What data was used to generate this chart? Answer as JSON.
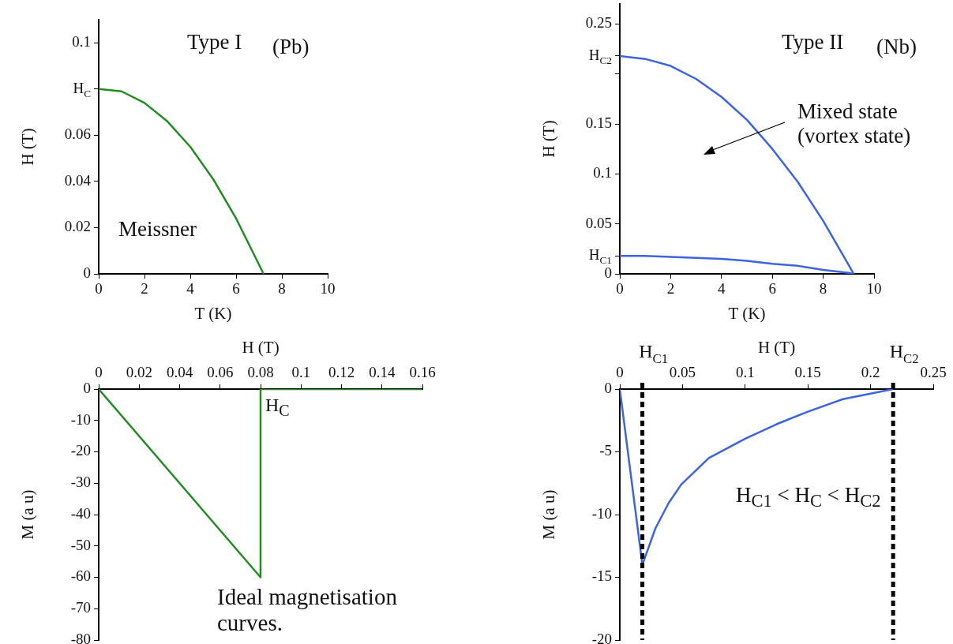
{
  "chart_data": [
    {
      "type": "line",
      "xlabel": "T (K)",
      "ylabel": "H (T)",
      "x": [
        0,
        1,
        2,
        3,
        4,
        5,
        6,
        7,
        7.2
      ],
      "series": [
        {
          "color": "#228b22",
          "values": [
            0.08,
            0.079,
            0.074,
            0.066,
            0.055,
            0.041,
            0.024,
            0.004,
            0
          ]
        }
      ],
      "xlim": [
        0,
        10
      ],
      "xticks": [
        0,
        2,
        4,
        6,
        8,
        10
      ],
      "ylim": [
        0,
        0.11
      ],
      "yticks": [
        0,
        0.02,
        0.04,
        0.06,
        {
          "value": 0.08,
          "label": "H$_{C}$"
        },
        0.1
      ],
      "annotations": [
        "Type I",
        "(Pb)",
        "Meissner"
      ]
    },
    {
      "type": "line",
      "xlabel": "T (K)",
      "ylabel": "H (T)",
      "x": [
        0,
        1,
        2,
        3,
        4,
        5,
        6,
        7,
        8,
        9,
        9.2
      ],
      "series": [
        {
          "color": "#3c64e0",
          "values": [
            0.218,
            0.215,
            0.208,
            0.195,
            0.177,
            0.154,
            0.125,
            0.092,
            0.053,
            0.009,
            0
          ]
        },
        {
          "color": "#3c64e0",
          "values": [
            0.018,
            0.018,
            0.017,
            0.016,
            0.015,
            0.013,
            0.01,
            0.008,
            0.004,
            0.001,
            0
          ]
        }
      ],
      "xlim": [
        0,
        10
      ],
      "xticks": [
        0,
        2,
        4,
        6,
        8,
        10
      ],
      "ylim": [
        0,
        0.27
      ],
      "yticks": [
        0,
        {
          "value": 0.018,
          "label": "H$_{C1}$"
        },
        0.05,
        0.1,
        0.15,
        {
          "value": 0.2,
          "label": null
        },
        {
          "value": 0.218,
          "label": "H$_{C2}$"
        },
        0.25
      ],
      "annotations": [
        "Type II",
        "(Nb)",
        "Mixed state\n(vortex state)"
      ]
    },
    {
      "type": "line",
      "xlabel": "H (T)",
      "ylabel": "M (a u)",
      "x": [
        0,
        0.08,
        0.08,
        0.16
      ],
      "series": [
        {
          "color": "#228b22",
          "values": [
            0,
            -60,
            0,
            0
          ]
        }
      ],
      "xlim": [
        0,
        0.16
      ],
      "xticks": [
        0,
        0.02,
        0.04,
        0.06,
        0.08,
        0.1,
        0.12,
        0.14,
        0.16
      ],
      "ylim": [
        -80,
        0
      ],
      "yticks": [
        -80,
        -70,
        -60,
        -50,
        -40,
        -30,
        -20,
        -10,
        0
      ],
      "annotations": [
        "H$_{C}$",
        "Ideal magnetisation curves."
      ]
    },
    {
      "type": "line",
      "xlabel": "H (T)",
      "ylabel": "M (a u)",
      "x": [
        0,
        0.018,
        0.0284,
        0.039,
        0.049,
        0.071,
        0.1,
        0.125,
        0.15,
        0.178,
        0.218
      ],
      "series": [
        {
          "color": "#3c64e0",
          "values": [
            0,
            -14,
            -11.1,
            -9.07,
            -7.6,
            -5.5,
            -3.95,
            -2.8,
            -1.8,
            -0.8,
            0
          ]
        }
      ],
      "xlim": [
        0,
        0.25
      ],
      "xticks": [
        0,
        0.05,
        0.1,
        0.15,
        0.2,
        0.25
      ],
      "ylim": [
        -20,
        0
      ],
      "yticks": [
        -20,
        -15,
        -10,
        -5,
        0
      ],
      "ref_lines": [
        {
          "axis": "x",
          "value": 0.018,
          "label": "H$_{C1}$",
          "color": "#000000",
          "line_style": "dashed"
        },
        {
          "axis": "x",
          "value": 0.218,
          "label": "H$_{C2}$",
          "color": "#000000",
          "line_style": "dashed"
        }
      ],
      "annotations": [
        "H$_{C1}$ < H$_{C}$ < H$_{C2}$"
      ]
    }
  ]
}
